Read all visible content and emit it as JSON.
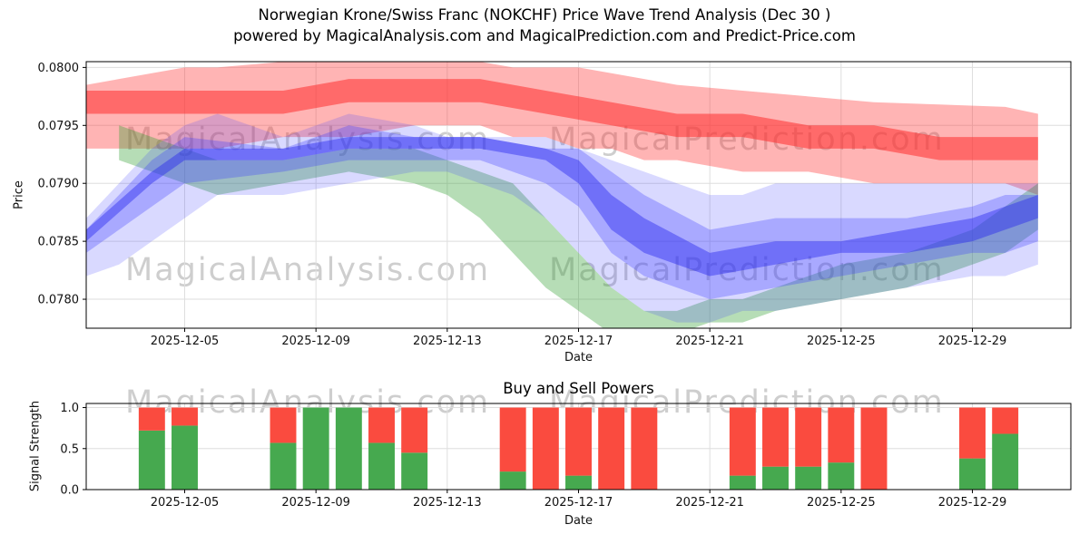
{
  "title": "Norwegian Krone/Swiss Franc (NOKCHF) Price Wave Trend Analysis (Dec 30 )",
  "subtitle": "powered by MagicalAnalysis.com and MagicalPrediction.com and Predict-Price.com",
  "watermarks": {
    "analysis": "MagicalAnalysis.com",
    "prediction": "MagicalPrediction.com"
  },
  "chart_data": [
    {
      "type": "area",
      "title": "",
      "xlabel": "Date",
      "ylabel": "Price",
      "xlim": [
        2,
        32
      ],
      "ylim": [
        0.07775,
        0.08005
      ],
      "grid": true,
      "x_ticks": [
        {
          "day": 5,
          "label": "2025-12-05"
        },
        {
          "day": 9,
          "label": "2025-12-09"
        },
        {
          "day": 13,
          "label": "2025-12-13"
        },
        {
          "day": 17,
          "label": "2025-12-17"
        },
        {
          "day": 21,
          "label": "2025-12-21"
        },
        {
          "day": 25,
          "label": "2025-12-25"
        },
        {
          "day": 29,
          "label": "2025-12-29"
        }
      ],
      "y_ticks": [
        {
          "value": 0.078,
          "label": "0.0780"
        },
        {
          "value": 0.0785,
          "label": "0.0785"
        },
        {
          "value": 0.079,
          "label": "0.0790"
        },
        {
          "value": 0.0795,
          "label": "0.0795"
        },
        {
          "value": 0.08,
          "label": "0.0800"
        }
      ],
      "bands": [
        {
          "name": "red-forecast-outer",
          "color": "#ff3b3b",
          "opacity": 0.38,
          "x": [
            2,
            3,
            4,
            5,
            6,
            8,
            10,
            12,
            13,
            14,
            15,
            16,
            17,
            18,
            19,
            20,
            22,
            24,
            26,
            28,
            30,
            31
          ],
          "upper": [
            0.07985,
            0.0799,
            0.07995,
            0.08,
            0.08,
            0.08005,
            0.08005,
            0.08005,
            0.08005,
            0.08005,
            0.08,
            0.08,
            0.08,
            0.07995,
            0.0799,
            0.07985,
            0.0798,
            0.07975,
            0.0797,
            0.07968,
            0.07966,
            0.0796
          ],
          "lower": [
            0.0793,
            0.0793,
            0.0793,
            0.0793,
            0.0793,
            0.0794,
            0.0794,
            0.0795,
            0.0795,
            0.0795,
            0.0794,
            0.0794,
            0.0793,
            0.0793,
            0.0792,
            0.0792,
            0.0791,
            0.0791,
            0.079,
            0.079,
            0.079,
            0.0789
          ]
        },
        {
          "name": "red-forecast-core",
          "color": "#ff2d2d",
          "opacity": 0.55,
          "x": [
            2,
            4,
            6,
            8,
            10,
            12,
            14,
            16,
            18,
            20,
            22,
            24,
            26,
            28,
            30,
            31
          ],
          "upper": [
            0.0798,
            0.0798,
            0.0798,
            0.0798,
            0.0799,
            0.0799,
            0.0799,
            0.0798,
            0.0797,
            0.0796,
            0.0796,
            0.0795,
            0.0795,
            0.0794,
            0.0794,
            0.0794
          ],
          "lower": [
            0.0796,
            0.0796,
            0.0796,
            0.0796,
            0.0797,
            0.0797,
            0.0797,
            0.0796,
            0.0795,
            0.0794,
            0.0794,
            0.0793,
            0.0793,
            0.0792,
            0.0792,
            0.0792
          ]
        },
        {
          "name": "green-wave",
          "color": "#2f9e2f",
          "opacity": 0.35,
          "x": [
            3,
            4,
            5,
            6,
            8,
            10,
            12,
            13,
            14,
            15,
            16,
            17,
            18,
            19,
            20,
            21,
            22,
            23,
            25,
            27,
            29,
            30,
            31
          ],
          "upper": [
            0.0795,
            0.0794,
            0.0793,
            0.0792,
            0.0792,
            0.0793,
            0.0793,
            0.0792,
            0.0791,
            0.079,
            0.0787,
            0.0784,
            0.0781,
            0.0779,
            0.0779,
            0.078,
            0.078,
            0.0781,
            0.0783,
            0.0784,
            0.0786,
            0.0788,
            0.079
          ],
          "lower": [
            0.0792,
            0.0791,
            0.079,
            0.0789,
            0.079,
            0.0791,
            0.079,
            0.0789,
            0.0787,
            0.0784,
            0.0781,
            0.0779,
            0.0777,
            0.0777,
            0.0777,
            0.0778,
            0.0778,
            0.0779,
            0.078,
            0.0781,
            0.0783,
            0.0784,
            0.0786
          ]
        },
        {
          "name": "blue-wave-outer",
          "color": "#4040ff",
          "opacity": 0.2,
          "x": [
            2,
            3,
            4,
            5,
            6,
            8,
            10,
            12,
            13,
            14,
            15,
            16,
            17,
            18,
            19,
            20,
            21,
            22,
            23,
            25,
            27,
            29,
            30,
            31
          ],
          "upper": [
            0.0787,
            0.079,
            0.0793,
            0.0795,
            0.0796,
            0.0794,
            0.0796,
            0.0795,
            0.0794,
            0.0794,
            0.0794,
            0.0794,
            0.0793,
            0.0792,
            0.0791,
            0.079,
            0.0789,
            0.0789,
            0.079,
            0.079,
            0.079,
            0.079,
            0.079,
            0.079
          ],
          "lower": [
            0.0782,
            0.0783,
            0.0785,
            0.0787,
            0.0789,
            0.0789,
            0.079,
            0.0791,
            0.0791,
            0.079,
            0.0789,
            0.0787,
            0.0784,
            0.0781,
            0.0779,
            0.0778,
            0.0778,
            0.0779,
            0.0779,
            0.078,
            0.0781,
            0.0782,
            0.0782,
            0.0783
          ]
        },
        {
          "name": "blue-wave-mid",
          "color": "#3b3bff",
          "opacity": 0.3,
          "x": [
            2,
            4,
            5,
            8,
            10,
            12,
            14,
            16,
            17,
            18,
            19,
            21,
            23,
            25,
            27,
            29,
            30,
            31
          ],
          "upper": [
            0.0786,
            0.0792,
            0.0794,
            0.0793,
            0.0795,
            0.0794,
            0.0794,
            0.0793,
            0.0793,
            0.0791,
            0.0789,
            0.0786,
            0.0787,
            0.0787,
            0.0787,
            0.0788,
            0.0789,
            0.0789
          ],
          "lower": [
            0.0784,
            0.0788,
            0.079,
            0.0791,
            0.0792,
            0.0792,
            0.0792,
            0.079,
            0.0788,
            0.0784,
            0.0782,
            0.078,
            0.0781,
            0.0782,
            0.0783,
            0.0784,
            0.0784,
            0.0785
          ]
        },
        {
          "name": "blue-wave-core",
          "color": "#2b2bf0",
          "opacity": 0.45,
          "x": [
            2,
            4,
            5,
            8,
            10,
            12,
            14,
            16,
            17,
            18,
            19,
            21,
            23,
            25,
            27,
            29,
            30,
            31
          ],
          "upper": [
            0.0786,
            0.0791,
            0.0793,
            0.0793,
            0.0794,
            0.0794,
            0.0794,
            0.0793,
            0.0792,
            0.0789,
            0.0787,
            0.0784,
            0.0785,
            0.0785,
            0.0786,
            0.0787,
            0.0788,
            0.0789
          ],
          "lower": [
            0.0785,
            0.079,
            0.0792,
            0.0792,
            0.0793,
            0.0793,
            0.0793,
            0.0792,
            0.079,
            0.0786,
            0.0784,
            0.0782,
            0.0783,
            0.0784,
            0.0784,
            0.0785,
            0.0786,
            0.0787
          ]
        }
      ]
    },
    {
      "type": "bar",
      "title": "Buy and Sell Powers",
      "xlabel": "Date",
      "ylabel": "Signal Strength",
      "xlim": [
        2,
        32
      ],
      "ylim": [
        0,
        1.05
      ],
      "grid": true,
      "colors": {
        "buy": "#46a94f",
        "sell": "#fa4b3f"
      },
      "x_ticks": [
        {
          "day": 5,
          "label": "2025-12-05"
        },
        {
          "day": 9,
          "label": "2025-12-09"
        },
        {
          "day": 13,
          "label": "2025-12-13"
        },
        {
          "day": 17,
          "label": "2025-12-17"
        },
        {
          "day": 21,
          "label": "2025-12-21"
        },
        {
          "day": 25,
          "label": "2025-12-25"
        },
        {
          "day": 29,
          "label": "2025-12-29"
        }
      ],
      "y_ticks": [
        {
          "value": 0,
          "label": "0.0"
        },
        {
          "value": 0.5,
          "label": "0.5"
        },
        {
          "value": 1,
          "label": "1.0"
        }
      ],
      "bars": [
        {
          "date": "2025-12-04",
          "day": 4,
          "buy": 0.72,
          "sell": 0.28
        },
        {
          "date": "2025-12-05",
          "day": 5,
          "buy": 0.78,
          "sell": 0.22
        },
        {
          "date": "2025-12-08",
          "day": 8,
          "buy": 0.57,
          "sell": 0.43
        },
        {
          "date": "2025-12-09",
          "day": 9,
          "buy": 1.0,
          "sell": 0.0
        },
        {
          "date": "2025-12-10",
          "day": 10,
          "buy": 1.0,
          "sell": 0.0
        },
        {
          "date": "2025-12-11",
          "day": 11,
          "buy": 0.57,
          "sell": 0.43
        },
        {
          "date": "2025-12-12",
          "day": 12,
          "buy": 0.45,
          "sell": 0.55
        },
        {
          "date": "2025-12-15",
          "day": 15,
          "buy": 0.22,
          "sell": 0.78
        },
        {
          "date": "2025-12-16",
          "day": 16,
          "buy": 0.0,
          "sell": 1.0
        },
        {
          "date": "2025-12-17",
          "day": 17,
          "buy": 0.17,
          "sell": 0.83
        },
        {
          "date": "2025-12-18",
          "day": 18,
          "buy": 0.0,
          "sell": 1.0
        },
        {
          "date": "2025-12-19",
          "day": 19,
          "buy": 0.0,
          "sell": 1.0
        },
        {
          "date": "2025-12-22",
          "day": 22,
          "buy": 0.17,
          "sell": 0.83
        },
        {
          "date": "2025-12-23",
          "day": 23,
          "buy": 0.28,
          "sell": 0.72
        },
        {
          "date": "2025-12-24",
          "day": 24,
          "buy": 0.28,
          "sell": 0.72
        },
        {
          "date": "2025-12-25",
          "day": 25,
          "buy": 0.33,
          "sell": 0.67
        },
        {
          "date": "2025-12-26",
          "day": 26,
          "buy": 0.0,
          "sell": 1.0
        },
        {
          "date": "2025-12-29",
          "day": 29,
          "buy": 0.38,
          "sell": 0.62
        },
        {
          "date": "2025-12-30",
          "day": 30,
          "buy": 0.68,
          "sell": 0.32
        }
      ]
    }
  ]
}
